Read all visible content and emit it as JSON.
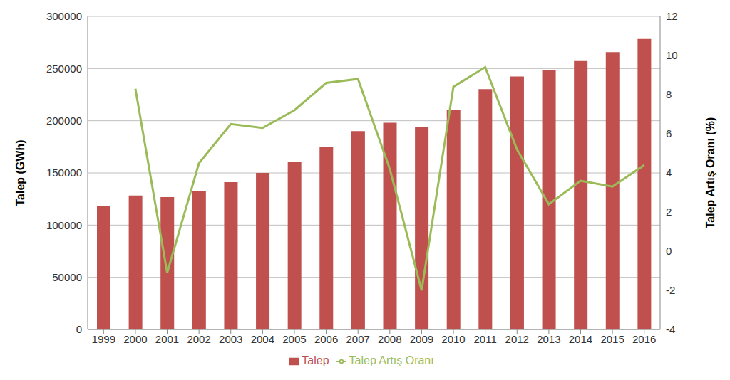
{
  "chart_data": {
    "type": "bar+line",
    "categories": [
      "1999",
      "2000",
      "2001",
      "2002",
      "2003",
      "2004",
      "2005",
      "2006",
      "2007",
      "2008",
      "2009",
      "2010",
      "2011",
      "2012",
      "2013",
      "2014",
      "2015",
      "2016"
    ],
    "series": [
      {
        "name": "Talep",
        "type": "bar",
        "color": "#c0504d",
        "values": [
          118500,
          128300,
          126900,
          132600,
          141200,
          150000,
          160800,
          174600,
          190000,
          198000,
          194100,
          210400,
          230300,
          242400,
          248300,
          257200,
          265700,
          278300
        ]
      },
      {
        "name": "Talep Artış Oranı",
        "type": "line",
        "color": "#9bbb59",
        "marker": "none",
        "axis": "y2",
        "values": [
          null,
          8.3,
          -1.1,
          4.5,
          6.5,
          6.3,
          7.2,
          8.6,
          8.8,
          4.2,
          -2.0,
          8.4,
          9.4,
          5.2,
          2.4,
          3.6,
          3.3,
          4.4
        ]
      }
    ],
    "y_label": "Talep (GWh)",
    "y2_label": "Talep Artış Oranı (%)",
    "ylim": [
      0,
      300000
    ],
    "yticks": [
      0,
      50000,
      100000,
      150000,
      200000,
      250000,
      300000
    ],
    "y2lim": [
      -4,
      12
    ],
    "y2ticks": [
      -4,
      -2,
      0,
      2,
      4,
      6,
      8,
      10,
      12
    ],
    "grid": true,
    "legend": "bottom"
  }
}
